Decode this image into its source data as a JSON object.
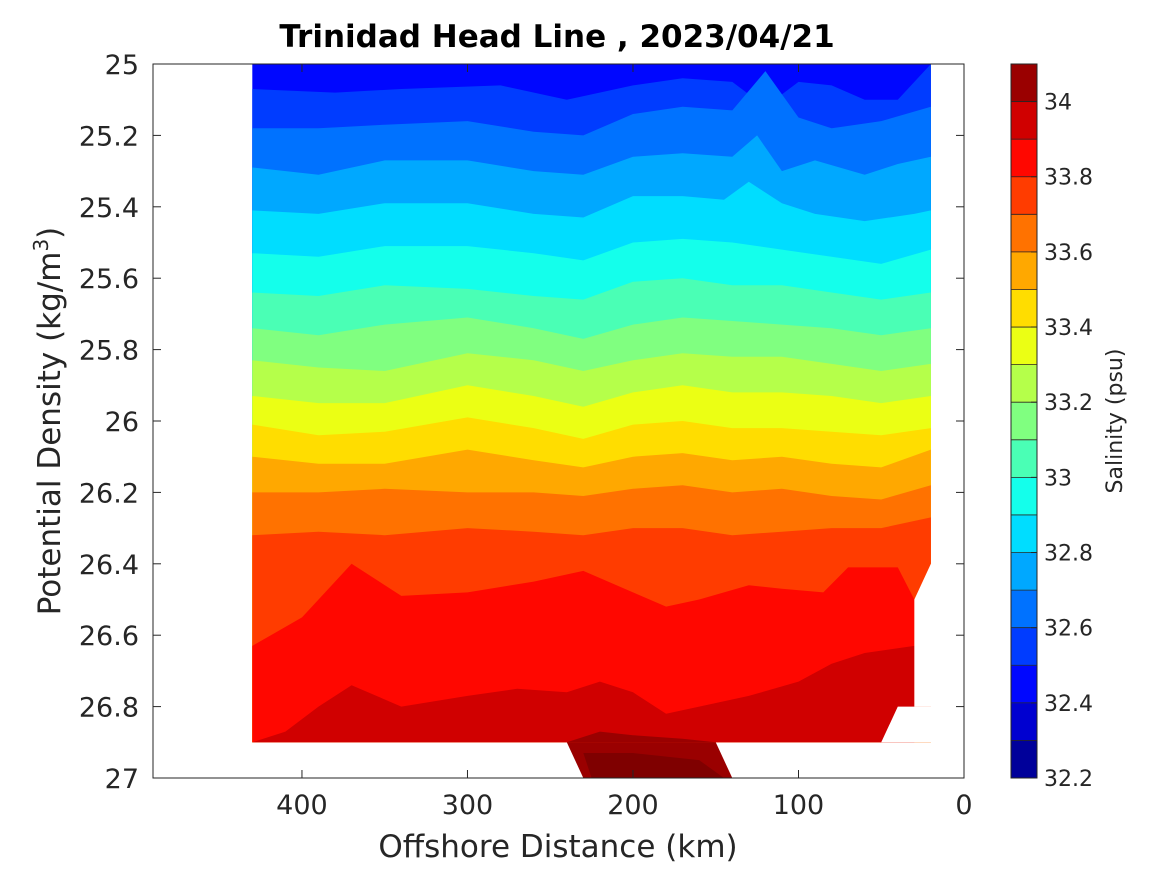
{
  "chart_data": {
    "type": "contourf",
    "title": "Trinidad Head Line , 2023/04/21",
    "xlabel": "Offshore Distance (km)",
    "ylabel": "Potential Density (kg/m",
    "ylabel_superscript": "3",
    "ylabel_suffix": ")",
    "x_direction": "reversed",
    "xlim": [
      0,
      490
    ],
    "ylim": [
      25,
      27
    ],
    "y_direction": "reversed",
    "xticks": [
      400,
      300,
      200,
      100,
      0
    ],
    "yticks": [
      25,
      25.2,
      25.4,
      25.6,
      25.8,
      26,
      26.2,
      26.4,
      26.6,
      26.8,
      27
    ],
    "ytick_labels": [
      "25",
      "25.2",
      "25.4",
      "25.6",
      "25.8",
      "26",
      "26.2",
      "26.4",
      "26.6",
      "26.8",
      "27"
    ],
    "colorbar": {
      "label": "Salinity (psu)",
      "range": [
        32.2,
        34.1
      ],
      "ticks": [
        32.2,
        32.4,
        32.6,
        32.8,
        33,
        33.2,
        33.4,
        33.6,
        33.8,
        34
      ],
      "tick_labels": [
        "32.2",
        "32.4",
        "32.6",
        "32.8",
        "33",
        "33.2",
        "33.4",
        "33.6",
        "33.8",
        "34"
      ],
      "level_step": 0.1,
      "colormap": "jet"
    },
    "data_extent_x": [
      20,
      430
    ],
    "contour_levels": [
      {
        "salinity": 32.5,
        "boundary": [
          [
            430,
            25.07
          ],
          [
            380,
            25.08
          ],
          [
            340,
            25.07
          ],
          [
            280,
            25.06
          ],
          [
            240,
            25.1
          ],
          [
            200,
            25.06
          ],
          [
            170,
            25.04
          ],
          [
            140,
            25.05
          ],
          [
            120,
            25.12
          ],
          [
            100,
            25.05
          ],
          [
            80,
            25.06
          ],
          [
            60,
            25.1
          ],
          [
            40,
            25.1
          ],
          [
            20,
            25.0
          ]
        ]
      },
      {
        "salinity": 32.6,
        "boundary": [
          [
            430,
            25.18
          ],
          [
            390,
            25.18
          ],
          [
            350,
            25.17
          ],
          [
            300,
            25.16
          ],
          [
            260,
            25.19
          ],
          [
            230,
            25.2
          ],
          [
            200,
            25.14
          ],
          [
            170,
            25.12
          ],
          [
            140,
            25.13
          ],
          [
            120,
            25.02
          ],
          [
            100,
            25.15
          ],
          [
            80,
            25.18
          ],
          [
            50,
            25.16
          ],
          [
            20,
            25.12
          ]
        ]
      },
      {
        "salinity": 32.7,
        "boundary": [
          [
            430,
            25.29
          ],
          [
            390,
            25.31
          ],
          [
            350,
            25.27
          ],
          [
            300,
            25.27
          ],
          [
            260,
            25.3
          ],
          [
            230,
            25.31
          ],
          [
            200,
            25.26
          ],
          [
            170,
            25.25
          ],
          [
            140,
            25.26
          ],
          [
            125,
            25.2
          ],
          [
            110,
            25.3
          ],
          [
            90,
            25.27
          ],
          [
            60,
            25.31
          ],
          [
            40,
            25.28
          ],
          [
            20,
            25.26
          ]
        ]
      },
      {
        "salinity": 32.8,
        "boundary": [
          [
            430,
            25.41
          ],
          [
            390,
            25.42
          ],
          [
            350,
            25.39
          ],
          [
            300,
            25.39
          ],
          [
            260,
            25.42
          ],
          [
            230,
            25.43
          ],
          [
            200,
            25.37
          ],
          [
            170,
            25.37
          ],
          [
            145,
            25.38
          ],
          [
            130,
            25.33
          ],
          [
            110,
            25.39
          ],
          [
            90,
            25.42
          ],
          [
            60,
            25.44
          ],
          [
            30,
            25.42
          ],
          [
            20,
            25.41
          ]
        ]
      },
      {
        "salinity": 32.9,
        "boundary": [
          [
            430,
            25.53
          ],
          [
            390,
            25.54
          ],
          [
            350,
            25.51
          ],
          [
            300,
            25.51
          ],
          [
            260,
            25.53
          ],
          [
            230,
            25.55
          ],
          [
            200,
            25.5
          ],
          [
            170,
            25.49
          ],
          [
            140,
            25.5
          ],
          [
            110,
            25.52
          ],
          [
            80,
            25.54
          ],
          [
            50,
            25.56
          ],
          [
            20,
            25.52
          ]
        ]
      },
      {
        "salinity": 33.0,
        "boundary": [
          [
            430,
            25.64
          ],
          [
            390,
            25.65
          ],
          [
            350,
            25.62
          ],
          [
            300,
            25.63
          ],
          [
            260,
            25.65
          ],
          [
            230,
            25.66
          ],
          [
            200,
            25.61
          ],
          [
            170,
            25.6
          ],
          [
            140,
            25.62
          ],
          [
            110,
            25.62
          ],
          [
            80,
            25.64
          ],
          [
            50,
            25.66
          ],
          [
            20,
            25.64
          ]
        ]
      },
      {
        "salinity": 33.1,
        "boundary": [
          [
            430,
            25.74
          ],
          [
            390,
            25.76
          ],
          [
            350,
            25.73
          ],
          [
            300,
            25.71
          ],
          [
            260,
            25.74
          ],
          [
            230,
            25.77
          ],
          [
            200,
            25.73
          ],
          [
            170,
            25.71
          ],
          [
            140,
            25.72
          ],
          [
            110,
            25.73
          ],
          [
            80,
            25.74
          ],
          [
            50,
            25.76
          ],
          [
            20,
            25.74
          ]
        ]
      },
      {
        "salinity": 33.2,
        "boundary": [
          [
            430,
            25.83
          ],
          [
            390,
            25.85
          ],
          [
            350,
            25.86
          ],
          [
            300,
            25.81
          ],
          [
            260,
            25.83
          ],
          [
            230,
            25.86
          ],
          [
            200,
            25.83
          ],
          [
            170,
            25.81
          ],
          [
            140,
            25.82
          ],
          [
            110,
            25.82
          ],
          [
            80,
            25.84
          ],
          [
            50,
            25.86
          ],
          [
            20,
            25.84
          ]
        ]
      },
      {
        "salinity": 33.3,
        "boundary": [
          [
            430,
            25.93
          ],
          [
            390,
            25.95
          ],
          [
            350,
            25.95
          ],
          [
            300,
            25.9
          ],
          [
            260,
            25.93
          ],
          [
            230,
            25.96
          ],
          [
            200,
            25.92
          ],
          [
            170,
            25.9
          ],
          [
            140,
            25.92
          ],
          [
            110,
            25.92
          ],
          [
            80,
            25.93
          ],
          [
            50,
            25.95
          ],
          [
            20,
            25.93
          ]
        ]
      },
      {
        "salinity": 33.4,
        "boundary": [
          [
            430,
            26.01
          ],
          [
            390,
            26.04
          ],
          [
            350,
            26.03
          ],
          [
            300,
            25.99
          ],
          [
            260,
            26.02
          ],
          [
            230,
            26.05
          ],
          [
            200,
            26.01
          ],
          [
            170,
            26.0
          ],
          [
            140,
            26.02
          ],
          [
            110,
            26.02
          ],
          [
            80,
            26.03
          ],
          [
            50,
            26.04
          ],
          [
            20,
            26.02
          ]
        ]
      },
      {
        "salinity": 33.5,
        "boundary": [
          [
            430,
            26.1
          ],
          [
            390,
            26.12
          ],
          [
            350,
            26.12
          ],
          [
            300,
            26.08
          ],
          [
            260,
            26.11
          ],
          [
            230,
            26.13
          ],
          [
            200,
            26.1
          ],
          [
            170,
            26.09
          ],
          [
            140,
            26.11
          ],
          [
            110,
            26.1
          ],
          [
            80,
            26.12
          ],
          [
            50,
            26.13
          ],
          [
            20,
            26.08
          ]
        ]
      },
      {
        "salinity": 33.6,
        "boundary": [
          [
            430,
            26.2
          ],
          [
            390,
            26.2
          ],
          [
            350,
            26.19
          ],
          [
            300,
            26.2
          ],
          [
            260,
            26.2
          ],
          [
            230,
            26.21
          ],
          [
            200,
            26.19
          ],
          [
            170,
            26.18
          ],
          [
            140,
            26.2
          ],
          [
            110,
            26.19
          ],
          [
            80,
            26.21
          ],
          [
            50,
            26.22
          ],
          [
            20,
            26.18
          ]
        ]
      },
      {
        "salinity": 33.7,
        "boundary": [
          [
            430,
            26.32
          ],
          [
            390,
            26.31
          ],
          [
            350,
            26.32
          ],
          [
            300,
            26.3
          ],
          [
            260,
            26.31
          ],
          [
            230,
            26.32
          ],
          [
            200,
            26.3
          ],
          [
            170,
            26.3
          ],
          [
            140,
            26.32
          ],
          [
            110,
            26.31
          ],
          [
            80,
            26.3
          ],
          [
            50,
            26.3
          ],
          [
            20,
            26.27
          ]
        ]
      },
      {
        "salinity": 33.8,
        "boundary": [
          [
            430,
            26.63
          ],
          [
            400,
            26.55
          ],
          [
            380,
            26.45
          ],
          [
            370,
            26.4
          ],
          [
            340,
            26.49
          ],
          [
            300,
            26.48
          ],
          [
            260,
            26.45
          ],
          [
            230,
            26.42
          ],
          [
            200,
            26.48
          ],
          [
            180,
            26.52
          ],
          [
            160,
            26.5
          ],
          [
            130,
            26.46
          ],
          [
            110,
            26.47
          ],
          [
            85,
            26.48
          ],
          [
            70,
            26.41
          ],
          [
            40,
            26.41
          ],
          [
            30,
            26.5
          ]
        ]
      },
      {
        "salinity": 33.9,
        "boundary": [
          [
            430,
            26.9
          ],
          [
            410,
            26.87
          ],
          [
            390,
            26.8
          ],
          [
            370,
            26.74
          ],
          [
            340,
            26.8
          ],
          [
            300,
            26.77
          ],
          [
            270,
            26.75
          ],
          [
            240,
            26.76
          ],
          [
            220,
            26.73
          ],
          [
            200,
            26.76
          ],
          [
            180,
            26.82
          ],
          [
            160,
            26.8
          ],
          [
            130,
            26.77
          ],
          [
            100,
            26.73
          ],
          [
            80,
            26.68
          ],
          [
            60,
            26.65
          ],
          [
            30,
            26.63
          ]
        ]
      },
      {
        "salinity": 34.0,
        "boundary": [
          [
            240,
            26.9
          ],
          [
            220,
            26.87
          ],
          [
            200,
            26.88
          ],
          [
            170,
            26.89
          ],
          [
            150,
            26.9
          ]
        ]
      }
    ]
  }
}
